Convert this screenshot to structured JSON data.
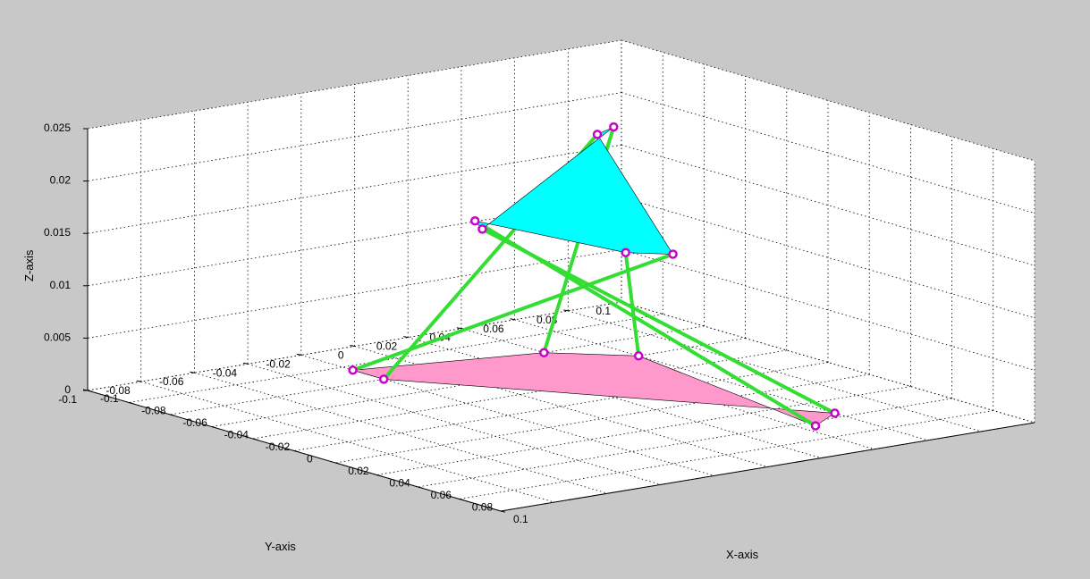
{
  "chart_data": {
    "type": "3d-line",
    "title": "",
    "xlabel": "X-axis",
    "ylabel": "Y-axis",
    "zlabel": "Z-axis",
    "xlim": [
      -0.1,
      0.1
    ],
    "ylim": [
      -0.1,
      0.1
    ],
    "zlim": [
      0,
      0.025
    ],
    "x_ticks": [
      "-0.1",
      "-0.08",
      "-0.06",
      "-0.04",
      "-0.02",
      "0",
      "0.02",
      "0.04",
      "0.06",
      "0.08",
      "0.1"
    ],
    "y_ticks": [
      "0.1",
      "0.08",
      "0.06",
      "0.04",
      "0.02",
      "0",
      "-0.02",
      "-0.04",
      "-0.06",
      "-0.08",
      "-0.1"
    ],
    "z_ticks": [
      "0",
      "0.005",
      "0.01",
      "0.015",
      "0.02",
      "0.025"
    ],
    "grid": true,
    "base_platform": {
      "color": "#ff99cc",
      "z": 0,
      "vertices": [
        [
          -0.06,
          0.04
        ],
        [
          -0.04,
          0.06
        ],
        [
          0.065,
          0.045
        ],
        [
          0.055,
          0.06
        ],
        [
          -0.06,
          -0.02
        ],
        [
          -0.075,
          -0.02
        ]
      ]
    },
    "top_platform": {
      "color": "#00ffff",
      "z": 0.02,
      "vertices": [
        [
          -0.065,
          0.07
        ],
        [
          -0.06,
          0.06
        ],
        [
          0.08,
          -0.02
        ],
        [
          0.07,
          -0.03
        ],
        [
          0.01,
          -0.04
        ],
        [
          0.02,
          -0.045
        ]
      ]
    },
    "legs_color": "#33dd33",
    "joint_color": "#cc00cc",
    "legs": [
      {
        "base": [
          -0.06,
          0.04
        ],
        "top": [
          -0.065,
          0.07
        ]
      },
      {
        "base": [
          -0.04,
          0.06
        ],
        "top": [
          0.07,
          -0.03
        ]
      },
      {
        "base": [
          0.065,
          0.045
        ],
        "top": [
          0.01,
          -0.04
        ]
      },
      {
        "base": [
          0.055,
          0.06
        ],
        "top": [
          0.02,
          -0.045
        ]
      },
      {
        "base": [
          -0.06,
          -0.02
        ],
        "top": [
          -0.06,
          0.06
        ]
      },
      {
        "base": [
          -0.075,
          -0.02
        ],
        "top": [
          0.08,
          -0.02
        ]
      }
    ]
  }
}
